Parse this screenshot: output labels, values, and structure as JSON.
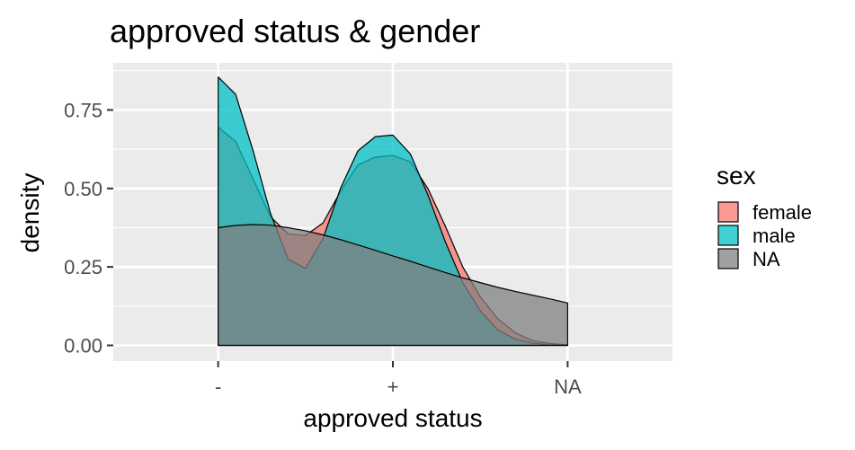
{
  "chart_data": {
    "type": "area",
    "title": "approved status & gender",
    "xlabel": "approved status",
    "ylabel": "density",
    "categories": [
      "-",
      "+",
      "NA"
    ],
    "x_range": [
      -0.6,
      2.6
    ],
    "ylim": [
      -0.05,
      0.9
    ],
    "y_ticks": [
      0.0,
      0.25,
      0.5,
      0.75
    ],
    "y_tick_labels": [
      "0.00",
      "0.25",
      "0.50",
      "0.75"
    ],
    "grid": true,
    "legend": {
      "title": "sex",
      "position": "right",
      "entries": [
        "female",
        "male",
        "NA"
      ]
    },
    "series": [
      {
        "name": "female",
        "color": "#F8766D",
        "x": [
          0,
          0.1,
          0.2,
          0.3,
          0.4,
          0.5,
          0.6,
          0.7,
          0.8,
          0.9,
          1.0,
          1.1,
          1.2,
          1.3,
          1.4,
          1.5,
          1.6,
          1.7,
          1.8,
          1.9,
          2.0
        ],
        "y": [
          0.695,
          0.65,
          0.53,
          0.41,
          0.355,
          0.35,
          0.39,
          0.49,
          0.575,
          0.6,
          0.605,
          0.585,
          0.5,
          0.38,
          0.25,
          0.155,
          0.085,
          0.04,
          0.015,
          0.006,
          0.002
        ]
      },
      {
        "name": "male",
        "color": "#00BFC4",
        "x": [
          0,
          0.1,
          0.2,
          0.3,
          0.4,
          0.5,
          0.6,
          0.7,
          0.8,
          0.9,
          1.0,
          1.1,
          1.2,
          1.3,
          1.4,
          1.5,
          1.6,
          1.7,
          1.8,
          1.9,
          2.0
        ],
        "y": [
          0.855,
          0.8,
          0.62,
          0.42,
          0.275,
          0.245,
          0.34,
          0.5,
          0.62,
          0.665,
          0.67,
          0.61,
          0.48,
          0.33,
          0.2,
          0.11,
          0.05,
          0.02,
          0.007,
          0.002,
          0.0
        ]
      },
      {
        "name": "NA",
        "color": "#808080",
        "x": [
          0,
          0.1,
          0.2,
          0.3,
          0.4,
          0.5,
          0.6,
          0.7,
          0.8,
          0.9,
          1.0,
          1.1,
          1.2,
          1.3,
          1.4,
          1.5,
          1.6,
          1.7,
          1.8,
          1.9,
          2.0
        ],
        "y": [
          0.375,
          0.382,
          0.385,
          0.383,
          0.375,
          0.365,
          0.352,
          0.337,
          0.32,
          0.303,
          0.285,
          0.268,
          0.25,
          0.232,
          0.215,
          0.2,
          0.185,
          0.172,
          0.16,
          0.148,
          0.135
        ]
      }
    ]
  }
}
